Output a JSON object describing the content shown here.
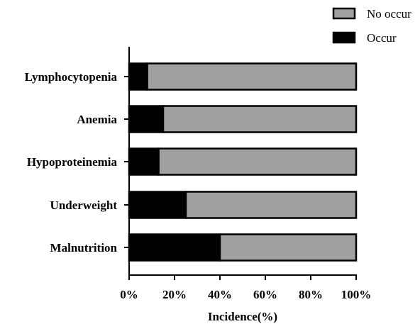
{
  "chart_data": {
    "type": "bar",
    "orientation": "horizontal",
    "stacked": true,
    "categories": [
      "Lymphocytopenia",
      "Anemia",
      "Hypoproteinemia",
      "Underweight",
      "Malnutrition"
    ],
    "series": [
      {
        "name": "Occur",
        "color": "#000000",
        "values": [
          8,
          15,
          13,
          25,
          40
        ]
      },
      {
        "name": "No occur",
        "color": "#a0a0a0",
        "values": [
          92,
          85,
          87,
          75,
          60
        ]
      }
    ],
    "xlabel": "Incidence(%)",
    "ylabel": "",
    "xlim": [
      0,
      100
    ],
    "xticks": [
      "0%",
      "20%",
      "40%",
      "60%",
      "80%",
      "100%"
    ],
    "legend": {
      "position": "top-right",
      "order": [
        "No occur",
        "Occur"
      ]
    },
    "grid": false
  }
}
